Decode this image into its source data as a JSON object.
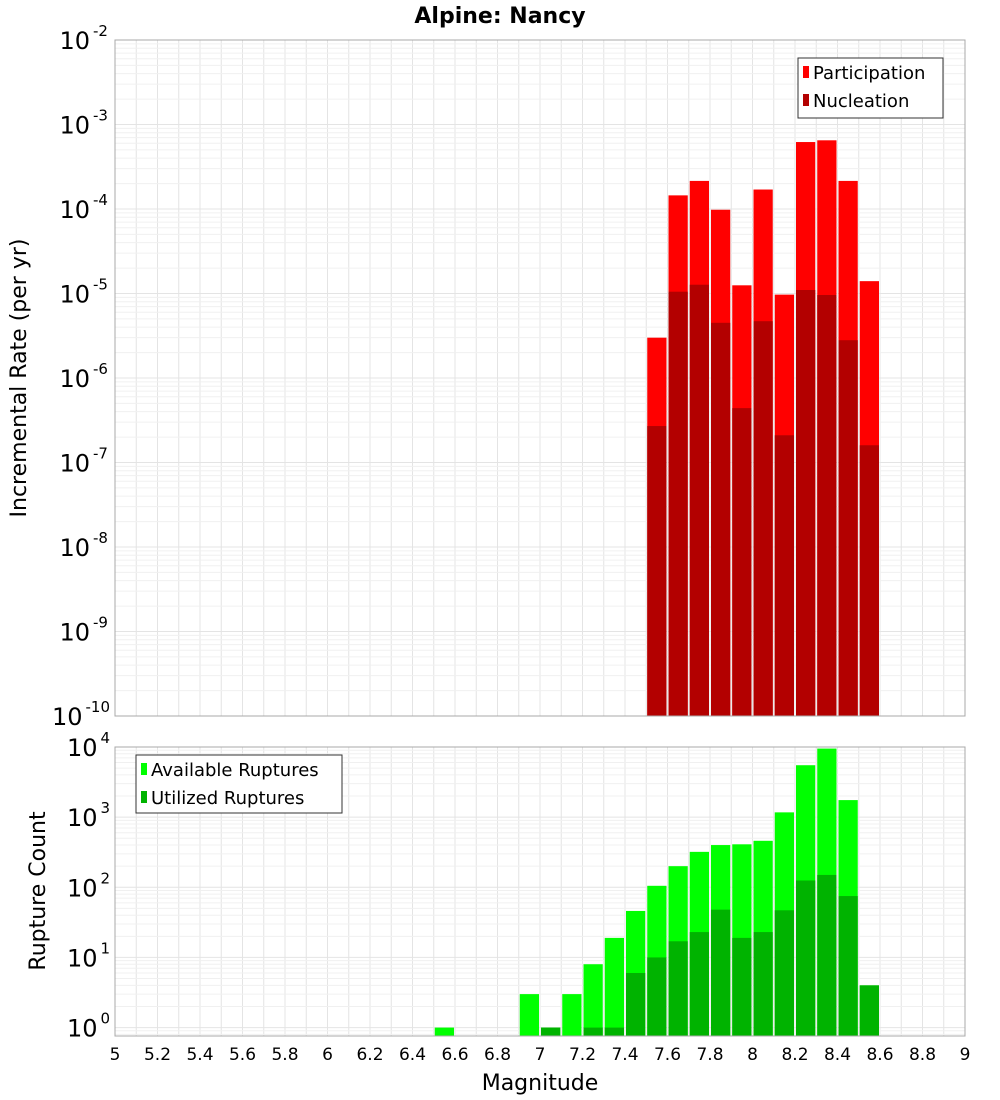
{
  "title": "Alpine: Nancy",
  "chart_data": [
    {
      "type": "bar",
      "ylabel": "Incremental Rate (per yr)",
      "yscale": "log",
      "ylim_exp": [
        -10,
        -2
      ],
      "xlim": [
        5,
        9
      ],
      "bin_width": 0.1,
      "legend_position": "top-right",
      "series": [
        {
          "name": "Participation",
          "color": "#ff0000",
          "x": [
            7.55,
            7.65,
            7.75,
            7.85,
            7.95,
            8.05,
            8.15,
            8.25,
            8.35,
            8.45,
            8.55
          ],
          "values": [
            3e-06,
            0.000145,
            0.000215,
            9.8e-05,
            1.25e-05,
            0.00017,
            9.7e-06,
            0.00062,
            0.00065,
            0.000215,
            1.4e-05
          ]
        },
        {
          "name": "Nucleation",
          "color": "#b30000",
          "x": [
            7.55,
            7.65,
            7.75,
            7.85,
            7.95,
            8.05,
            8.15,
            8.25,
            8.35,
            8.45,
            8.55
          ],
          "values": [
            2.7e-07,
            1.05e-05,
            1.27e-05,
            4.5e-06,
            4.4e-07,
            4.7e-06,
            2.1e-07,
            1.1e-05,
            9.6e-06,
            2.8e-06,
            1.6e-07
          ]
        }
      ]
    },
    {
      "type": "bar",
      "xlabel": "Magnitude",
      "ylabel": "Rupture Count",
      "yscale": "log",
      "ylim_exp": [
        -0.12,
        4
      ],
      "xlim": [
        5,
        9
      ],
      "bin_width": 0.1,
      "legend_position": "top-left",
      "series": [
        {
          "name": "Available Ruptures",
          "color": "#00ff00",
          "x": [
            6.55,
            6.95,
            7.05,
            7.15,
            7.25,
            7.35,
            7.45,
            7.55,
            7.65,
            7.75,
            7.85,
            7.95,
            8.05,
            8.15,
            8.25,
            8.35,
            8.45,
            8.55
          ],
          "values": [
            1,
            3,
            1,
            3,
            8,
            19,
            46,
            105,
            200,
            320,
            400,
            410,
            460,
            1170,
            5500,
            9500,
            1750,
            4
          ]
        },
        {
          "name": "Utilized Ruptures",
          "color": "#00b300",
          "x": [
            7.05,
            7.25,
            7.35,
            7.45,
            7.55,
            7.65,
            7.75,
            7.85,
            7.95,
            8.05,
            8.15,
            8.25,
            8.35,
            8.45,
            8.55
          ],
          "values": [
            1,
            1,
            1,
            6,
            10,
            17,
            23,
            48,
            19,
            23,
            47,
            125,
            150,
            75,
            4
          ]
        }
      ]
    }
  ],
  "x_ticks": [
    "5",
    "5.2",
    "5.4",
    "5.6",
    "5.8",
    "6",
    "6.2",
    "6.4",
    "6.6",
    "6.8",
    "7",
    "7.2",
    "7.4",
    "7.6",
    "7.8",
    "8",
    "8.2",
    "8.4",
    "8.6",
    "8.8",
    "9"
  ],
  "top_y_ticks": [
    {
      "base": "10",
      "exp": "-2"
    },
    {
      "base": "10",
      "exp": "-3"
    },
    {
      "base": "10",
      "exp": "-4"
    },
    {
      "base": "10",
      "exp": "-5"
    },
    {
      "base": "10",
      "exp": "-6"
    },
    {
      "base": "10",
      "exp": "-7"
    },
    {
      "base": "10",
      "exp": "-8"
    },
    {
      "base": "10",
      "exp": "-9"
    },
    {
      "base": "10",
      "exp": "-10"
    }
  ],
  "bottom_y_ticks": [
    {
      "base": "10",
      "exp": "4"
    },
    {
      "base": "10",
      "exp": "3"
    },
    {
      "base": "10",
      "exp": "2"
    },
    {
      "base": "10",
      "exp": "1"
    },
    {
      "base": "10",
      "exp": "0"
    }
  ]
}
